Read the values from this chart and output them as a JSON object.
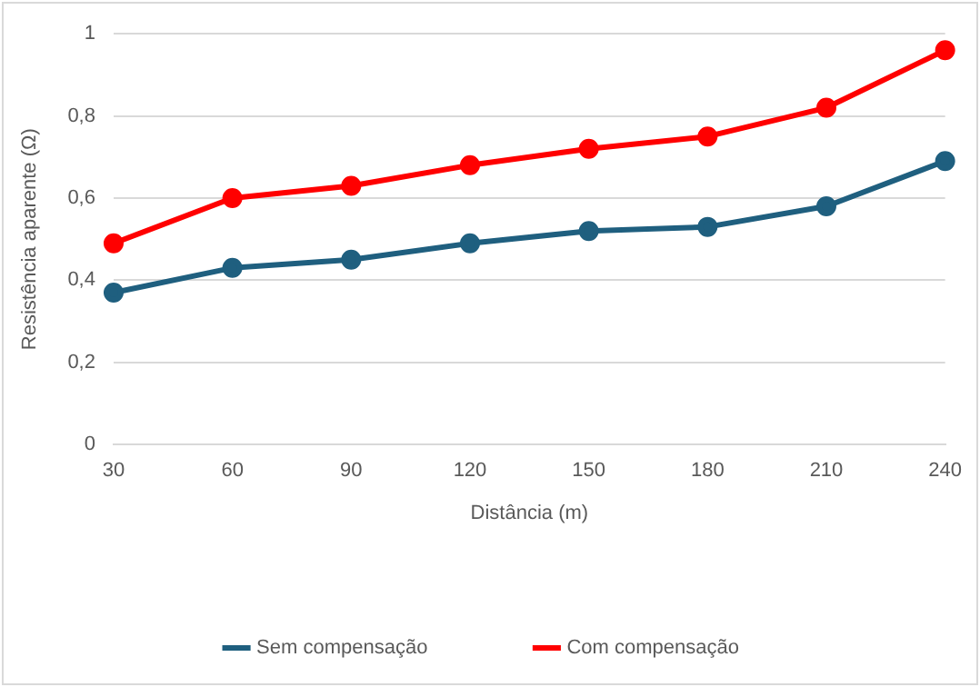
{
  "chart_data": {
    "type": "line",
    "xlabel": "Distância (m)",
    "ylabel": "Resistência aparente (Ω)",
    "categories": [
      "30",
      "60",
      "90",
      "120",
      "150",
      "180",
      "210",
      "240"
    ],
    "series": [
      {
        "name": "Sem compensação",
        "color": "#1f5f7f",
        "values": [
          0.37,
          0.43,
          0.45,
          0.49,
          0.52,
          0.53,
          0.58,
          0.69
        ]
      },
      {
        "name": "Com compensação",
        "color": "#ff0000",
        "values": [
          0.49,
          0.6,
          0.63,
          0.68,
          0.72,
          0.75,
          0.82,
          0.96
        ]
      }
    ],
    "ylim": [
      0,
      1
    ],
    "yticks": [
      {
        "value": 0,
        "label": "0"
      },
      {
        "value": 0.2,
        "label": "0,2"
      },
      {
        "value": 0.4,
        "label": "0,4"
      },
      {
        "value": 0.6,
        "label": "0,6"
      },
      {
        "value": 0.8,
        "label": "0,8"
      },
      {
        "value": 1,
        "label": "1"
      }
    ],
    "grid": "y",
    "legend": "bottom",
    "marker": "circle",
    "line_style": "solid"
  }
}
